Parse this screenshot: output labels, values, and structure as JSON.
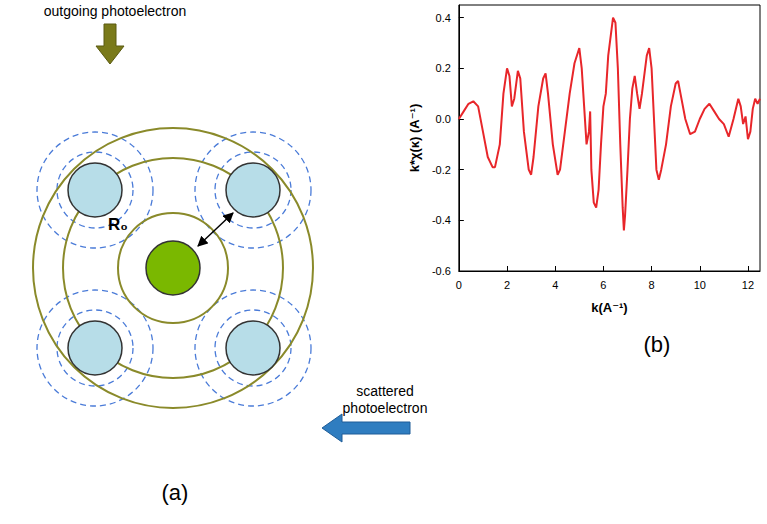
{
  "diagram": {
    "panel_label": "(a)",
    "outgoing_label": "outgoing photoelectron",
    "scattered_label": "scattered photoelectron",
    "distance_label": "R₀"
  },
  "chart_data": {
    "type": "line",
    "panel_label": "(b)",
    "x_label": "k(A⁻¹)",
    "y_label": "k*χ(κ) (A⁻¹)",
    "color": "#e8262a",
    "marker": "none",
    "line_style": "solid",
    "grid": false,
    "xlim": [
      0,
      12.5
    ],
    "xticks": [
      0,
      2,
      4,
      6,
      8,
      10,
      12
    ],
    "ylim": [
      -0.6,
      0.45
    ],
    "yticks": [
      -0.6,
      -0.4,
      -0.2,
      {
        "value": 0,
        "label": "0.0"
      },
      0.2,
      0.4
    ],
    "x": [
      0,
      0.2,
      0.4,
      0.6,
      0.8,
      1.0,
      1.2,
      1.4,
      1.5,
      1.7,
      1.85,
      2.0,
      2.1,
      2.2,
      2.3,
      2.45,
      2.55,
      2.7,
      2.9,
      3.0,
      3.1,
      3.3,
      3.5,
      3.6,
      3.7,
      3.9,
      4.1,
      4.2,
      4.4,
      4.6,
      4.8,
      5.0,
      5.1,
      5.2,
      5.3,
      5.4,
      5.45,
      5.5,
      5.6,
      5.7,
      5.8,
      5.9,
      6.0,
      6.1,
      6.2,
      6.4,
      6.5,
      6.6,
      6.7,
      6.8,
      6.85,
      6.9,
      7.0,
      7.1,
      7.2,
      7.3,
      7.4,
      7.5,
      7.6,
      7.8,
      7.9,
      8.0,
      8.1,
      8.2,
      8.3,
      8.4,
      8.6,
      8.8,
      9.0,
      9.1,
      9.2,
      9.4,
      9.6,
      9.8,
      10.0,
      10.2,
      10.4,
      10.6,
      10.8,
      11.0,
      11.2,
      11.4,
      11.6,
      11.7,
      11.8,
      11.9,
      12.0,
      12.1,
      12.2,
      12.3,
      12.4,
      12.5
    ],
    "values": [
      0.0,
      0.03,
      0.06,
      0.07,
      0.05,
      -0.05,
      -0.15,
      -0.19,
      -0.19,
      -0.1,
      0.1,
      0.2,
      0.17,
      0.05,
      0.08,
      0.19,
      0.16,
      -0.05,
      -0.2,
      -0.22,
      -0.15,
      0.05,
      0.16,
      0.18,
      0.1,
      -0.1,
      -0.22,
      -0.2,
      -0.05,
      0.1,
      0.22,
      0.28,
      0.2,
      0.05,
      -0.1,
      -0.05,
      0.03,
      -0.2,
      -0.33,
      -0.35,
      -0.28,
      -0.1,
      0.05,
      0.1,
      0.25,
      0.4,
      0.38,
      0.2,
      -0.1,
      -0.35,
      -0.44,
      -0.38,
      -0.2,
      0.0,
      0.12,
      0.17,
      0.1,
      0.04,
      0.1,
      0.25,
      0.28,
      0.2,
      0.0,
      -0.2,
      -0.24,
      -0.2,
      -0.1,
      0.05,
      0.14,
      0.15,
      0.1,
      0.0,
      -0.06,
      -0.05,
      0.0,
      0.04,
      0.06,
      0.03,
      0.0,
      -0.02,
      -0.07,
      0.0,
      0.08,
      0.05,
      -0.02,
      0.01,
      -0.08,
      -0.05,
      0.04,
      0.08,
      0.06,
      0.08
    ]
  }
}
